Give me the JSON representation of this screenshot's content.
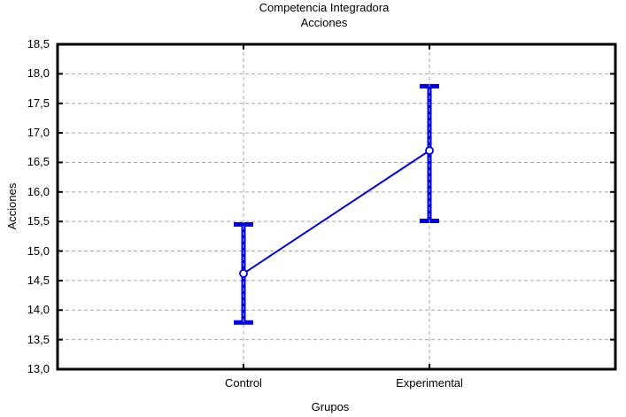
{
  "figure": {
    "background": "#ffffff",
    "text_color": "#000000"
  },
  "chart_data": {
    "type": "line",
    "title": "Competencia Integradora",
    "subtitle": "Acciones",
    "xlabel": "Grupos",
    "ylabel": "Acciones",
    "categories": [
      "Control",
      "Experimental"
    ],
    "series": [
      {
        "name": "Acciones",
        "marker": "open-circle",
        "color": "#0000EC",
        "means": [
          14.62,
          16.7
        ],
        "ci_lower": [
          13.79,
          15.51
        ],
        "ci_upper": [
          15.45,
          17.79
        ]
      }
    ],
    "ylim": [
      13.0,
      18.5
    ],
    "ytick_step": 0.5,
    "ytick_values": [
      18.5,
      18.0,
      17.5,
      17.0,
      16.5,
      16.0,
      15.5,
      15.0,
      14.5,
      14.0,
      13.5,
      13.0
    ],
    "ytick_labels": [
      "18,5",
      "18,0",
      "17,5",
      "17,0",
      "16,5",
      "16,0",
      "15,5",
      "15,0",
      "14,5",
      "14,0",
      "13,5",
      "13,0"
    ],
    "grid": {
      "horizontal": true,
      "vertical": true,
      "style": "dashed",
      "color": "#a8a8a8"
    },
    "frame_color": "#000000",
    "legend_position": "none"
  }
}
